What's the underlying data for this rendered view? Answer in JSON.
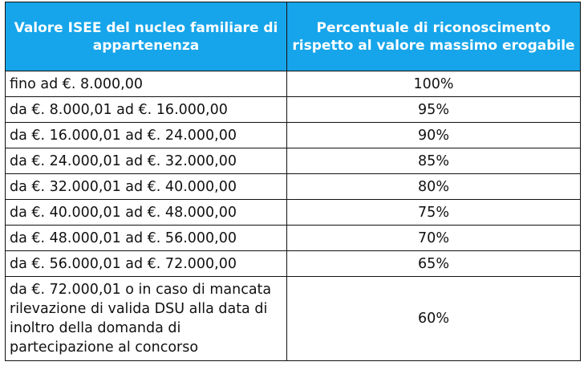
{
  "table": {
    "header": {
      "col1": "Valore ISEE del nucleo familiare di appartenenza",
      "col2": "Percentuale di riconoscimento rispetto al valore massimo erogabile"
    },
    "rows": [
      {
        "range": "fino ad €. 8.000,00",
        "percent": "100%"
      },
      {
        "range": "da €. 8.000,01 ad €. 16.000,00",
        "percent": "95%"
      },
      {
        "range": "da €. 16.000,01 ad €. 24.000,00",
        "percent": "90%"
      },
      {
        "range": "da €. 24.000,01 ad €. 32.000,00",
        "percent": "85%"
      },
      {
        "range": "da €. 32.000,01 ad €. 40.000,00",
        "percent": "80%"
      },
      {
        "range": "da €. 40.000,01 ad €. 48.000,00",
        "percent": "75%"
      },
      {
        "range": "da €. 48.000,01 ad €. 56.000,00",
        "percent": "70%"
      },
      {
        "range": "da €. 56.000,01 ad €. 72.000,00",
        "percent": "65%"
      },
      {
        "range": "da €. 72.000,01 o in caso di mancata rilevazione di valida DSU alla data di inoltro della domanda di partecipazione al concorso",
        "percent": "60%"
      }
    ],
    "colors": {
      "header_background": "#16a5ea",
      "header_text": "#ffffff",
      "border": "#111111"
    }
  }
}
